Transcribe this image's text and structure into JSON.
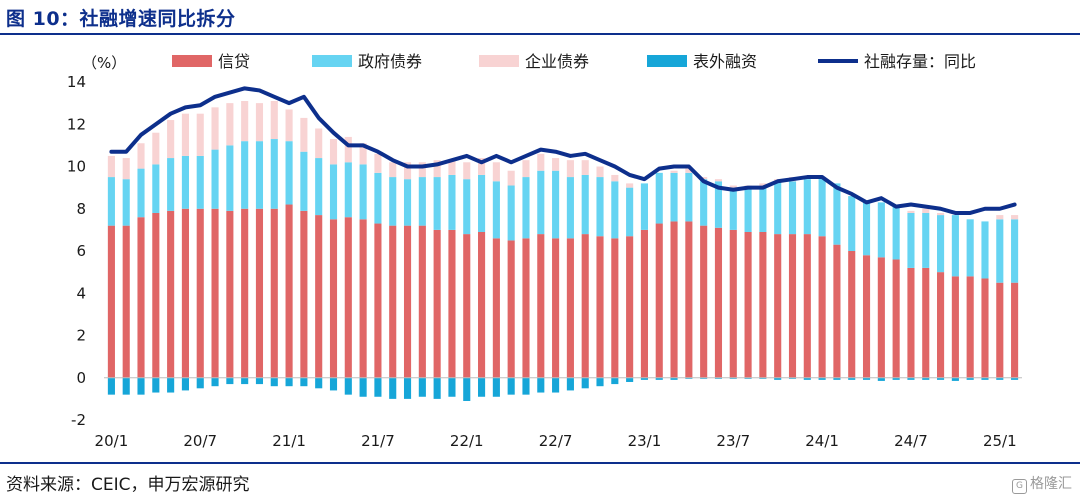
{
  "figure": {
    "title": "图 10：社融增速同比拆分",
    "source": "资料来源：CEIC，申万宏源研究",
    "watermark": "格隆汇"
  },
  "colors": {
    "loans": "#e06666",
    "gov_bonds": "#66d4f2",
    "corp_bonds": "#f8d3d3",
    "off_balance": "#16a6d8",
    "line": "#0d2f8c",
    "title": "#0d2f8c"
  },
  "chart_data": {
    "type": "bar",
    "stacked": true,
    "unit_label": "（%）",
    "ylim": [
      -2,
      14
    ],
    "yticks": [
      -2,
      0,
      2,
      4,
      6,
      8,
      10,
      12,
      14
    ],
    "xtick_labels": [
      "20/1",
      "20/7",
      "21/1",
      "21/7",
      "22/1",
      "22/7",
      "23/1",
      "23/7",
      "24/1",
      "24/7",
      "25/1"
    ],
    "xtick_positions": [
      0,
      6,
      12,
      18,
      24,
      30,
      36,
      42,
      48,
      54,
      60
    ],
    "categories_start": "20/1",
    "categories_end": "25/1",
    "legend_position": "top",
    "series": [
      {
        "name": "信贷",
        "kind": "bar",
        "values": [
          7.2,
          7.2,
          7.6,
          7.8,
          7.9,
          8.0,
          8.0,
          8.0,
          7.9,
          8.0,
          8.0,
          8.0,
          8.2,
          7.9,
          7.7,
          7.5,
          7.6,
          7.5,
          7.3,
          7.2,
          7.2,
          7.2,
          7.0,
          7.0,
          6.8,
          6.9,
          6.6,
          6.5,
          6.6,
          6.8,
          6.6,
          6.6,
          6.8,
          6.7,
          6.6,
          6.7,
          7.0,
          7.3,
          7.4,
          7.4,
          7.2,
          7.1,
          7.0,
          6.9,
          6.9,
          6.8,
          6.8,
          6.8,
          6.7,
          6.3,
          6.0,
          5.8,
          5.7,
          5.6,
          5.2,
          5.2,
          5.0,
          4.8,
          4.8,
          4.7,
          4.5,
          4.5
        ]
      },
      {
        "name": "政府债券",
        "kind": "bar",
        "values": [
          2.3,
          2.2,
          2.3,
          2.3,
          2.5,
          2.5,
          2.5,
          2.8,
          3.1,
          3.2,
          3.2,
          3.3,
          3.0,
          2.8,
          2.7,
          2.6,
          2.6,
          2.6,
          2.4,
          2.3,
          2.2,
          2.3,
          2.5,
          2.6,
          2.6,
          2.7,
          2.7,
          2.6,
          2.9,
          3.0,
          3.2,
          2.9,
          2.8,
          2.8,
          2.7,
          2.3,
          2.2,
          2.4,
          2.3,
          2.3,
          2.2,
          2.2,
          2.0,
          2.1,
          2.1,
          2.5,
          2.5,
          2.6,
          2.8,
          2.9,
          2.6,
          2.6,
          2.6,
          2.6,
          2.6,
          2.6,
          2.7,
          2.9,
          2.7,
          2.7,
          3.0,
          3.0
        ]
      },
      {
        "name": "企业债券",
        "kind": "bar",
        "values": [
          1.0,
          1.0,
          1.2,
          1.5,
          1.8,
          2.0,
          2.0,
          2.0,
          2.0,
          1.9,
          1.8,
          1.8,
          1.5,
          1.6,
          1.4,
          1.2,
          1.2,
          1.0,
          0.9,
          0.7,
          0.8,
          0.7,
          0.8,
          0.7,
          0.8,
          0.8,
          0.9,
          0.7,
          0.8,
          0.8,
          0.6,
          0.8,
          0.7,
          0.5,
          0.3,
          0.2,
          0.0,
          0.0,
          0.1,
          0.2,
          0.1,
          0.1,
          0.1,
          0.1,
          0.2,
          0.1,
          0.2,
          0.0,
          0.0,
          0.0,
          0.0,
          0.0,
          0.0,
          0.0,
          0.1,
          0.2,
          0.1,
          0.0,
          0.0,
          0.0,
          0.2,
          0.2
        ]
      },
      {
        "name": "表外融资",
        "kind": "bar",
        "values": [
          -0.8,
          -0.8,
          -0.8,
          -0.7,
          -0.7,
          -0.6,
          -0.5,
          -0.4,
          -0.3,
          -0.3,
          -0.3,
          -0.4,
          -0.4,
          -0.4,
          -0.5,
          -0.6,
          -0.8,
          -0.9,
          -0.9,
          -1.0,
          -1.0,
          -0.9,
          -1.0,
          -0.9,
          -1.1,
          -0.9,
          -0.9,
          -0.8,
          -0.8,
          -0.7,
          -0.7,
          -0.6,
          -0.5,
          -0.4,
          -0.3,
          -0.2,
          -0.1,
          -0.1,
          -0.1,
          -0.05,
          -0.05,
          -0.05,
          -0.05,
          -0.05,
          -0.05,
          -0.1,
          -0.05,
          -0.1,
          -0.1,
          -0.1,
          -0.1,
          -0.1,
          -0.15,
          -0.1,
          -0.1,
          -0.1,
          -0.1,
          -0.15,
          -0.1,
          -0.1,
          -0.1,
          -0.1
        ]
      },
      {
        "name": "社融存量：同比",
        "kind": "line",
        "values": [
          10.7,
          10.7,
          11.5,
          12.0,
          12.5,
          12.8,
          12.9,
          13.3,
          13.5,
          13.7,
          13.6,
          13.3,
          13.0,
          13.3,
          12.3,
          11.6,
          11.0,
          11.0,
          10.7,
          10.3,
          10.0,
          10.0,
          10.1,
          10.3,
          10.5,
          10.2,
          10.5,
          10.2,
          10.5,
          10.8,
          10.7,
          10.5,
          10.6,
          10.3,
          10.0,
          9.6,
          9.4,
          9.9,
          10.0,
          10.0,
          9.3,
          9.0,
          8.9,
          9.0,
          9.0,
          9.3,
          9.4,
          9.5,
          9.5,
          9.0,
          8.7,
          8.3,
          8.5,
          8.1,
          8.2,
          8.1,
          8.0,
          7.8,
          7.8,
          8.0,
          8.0,
          8.2
        ]
      }
    ]
  }
}
